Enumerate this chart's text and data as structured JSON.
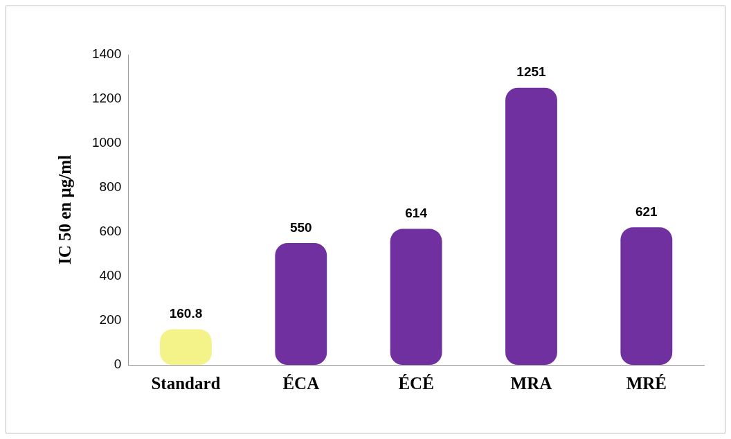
{
  "chart_data": {
    "type": "bar",
    "ylabel": "IC 50 en µg/ml",
    "categories": [
      "Standard",
      "ÉCA",
      "ÉCÉ",
      "MRA",
      "MRÉ"
    ],
    "values": [
      160.8,
      550,
      614,
      1251,
      621
    ],
    "colors": [
      "#f3f38a",
      "#7030a0",
      "#7030a0",
      "#7030a0",
      "#7030a0"
    ],
    "ylim": [
      0,
      1400
    ],
    "yticks": [
      0,
      200,
      400,
      600,
      800,
      1000,
      1200,
      1400
    ],
    "data_labels": true,
    "grid": false,
    "legend": false
  }
}
